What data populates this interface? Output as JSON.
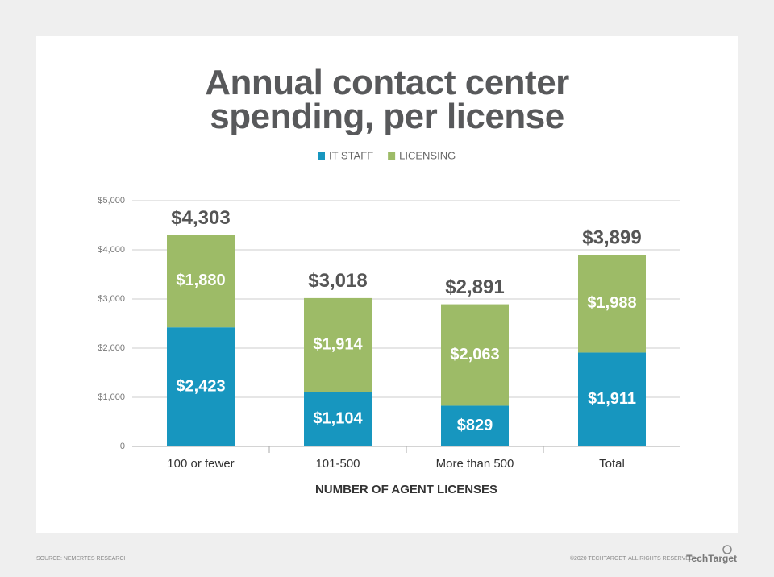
{
  "chart_data": {
    "type": "stacked-bar",
    "title": "Annual contact center spending, per license",
    "x_label": "NUMBER OF AGENT LICENSES",
    "categories": [
      "100 or fewer",
      "101-500",
      "More than 500",
      "Total"
    ],
    "series": [
      {
        "name": "IT STAFF",
        "color": "#1796bf",
        "values": [
          2423,
          1104,
          829,
          1911
        ],
        "value_labels": [
          "$2,423",
          "$1,104",
          "$829",
          "$1,911"
        ]
      },
      {
        "name": "LICENSING",
        "color": "#9dbb67",
        "values": [
          1880,
          1914,
          2063,
          1988
        ],
        "value_labels": [
          "$1,880",
          "$1,914",
          "$2,063",
          "$1,988"
        ]
      }
    ],
    "totals": [
      4303,
      3018,
      2891,
      3899
    ],
    "total_labels": [
      "$4,303",
      "$3,018",
      "$2,891",
      "$3,899"
    ],
    "ylim": [
      0,
      5000
    ],
    "yticks": [
      0,
      {
        "value": 1000,
        "label": "$1,000"
      },
      {
        "value": 2000,
        "label": "$2,000"
      },
      {
        "value": 3000,
        "label": "$3,000"
      },
      {
        "value": 4000,
        "label": "$4,000"
      },
      {
        "value": 5000,
        "label": "$5,000"
      }
    ],
    "grid": true,
    "legend": "top"
  },
  "source": "SOURCE: NEMERTES RESEARCH",
  "copyright": "©2020 TECHTARGET. ALL RIGHTS RESERVED",
  "logo": "TechTarget"
}
